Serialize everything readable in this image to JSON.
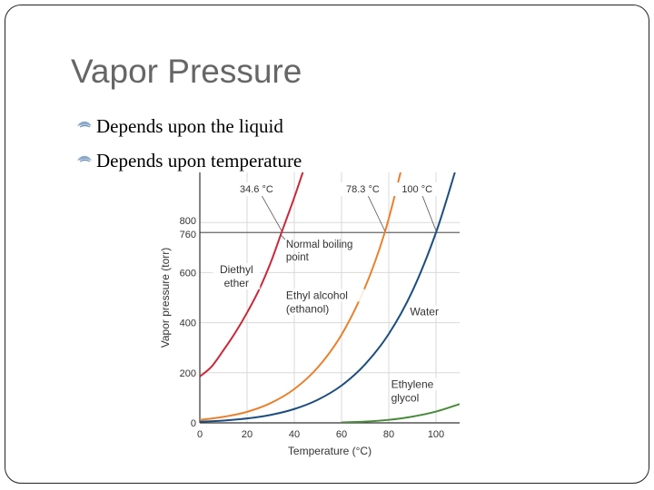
{
  "slide": {
    "title": "Vapor Pressure",
    "bullets": [
      {
        "icon": "bullet-ornament-icon",
        "text": "Depends upon the liquid"
      },
      {
        "icon": "bullet-ornament-icon",
        "text": "Depends upon temperature"
      }
    ]
  },
  "chart_data": {
    "type": "line",
    "title": "",
    "xlabel": "Temperature (°C)",
    "ylabel": "Vapor pressure (torr)",
    "xlim": [
      0,
      110
    ],
    "ylim": [
      0,
      1000
    ],
    "x_ticks": [
      0,
      20,
      40,
      60,
      80,
      100
    ],
    "y_ticks": [
      0,
      200,
      400,
      600,
      760,
      800
    ],
    "grid": true,
    "reference_line": {
      "y": 760,
      "label": "Normal boiling point"
    },
    "series": [
      {
        "name": "Diethyl ether",
        "label_lines": [
          "Diethyl",
          "ether"
        ],
        "color": "#c8283a",
        "boiling_point_label": "34.6 °C",
        "boiling_point": 34.6,
        "x": [
          0,
          5,
          10,
          15,
          20,
          25,
          30,
          34.6,
          40,
          45
        ],
        "y": [
          185,
          225,
          290,
          360,
          440,
          530,
          640,
          760,
          900,
          1040
        ]
      },
      {
        "name": "Ethyl alcohol (ethanol)",
        "label_lines": [
          "Ethyl alcohol",
          "(ethanol)"
        ],
        "color": "#e8802e",
        "boiling_point_label": "78.3 °C",
        "boiling_point": 78.3,
        "x": [
          0,
          10,
          20,
          30,
          40,
          50,
          60,
          70,
          78.3,
          85
        ],
        "y": [
          12,
          24,
          44,
          79,
          135,
          222,
          352,
          542,
          760,
          1000
        ]
      },
      {
        "name": "Water",
        "label_lines": [
          "Water"
        ],
        "color": "#1d4e7e",
        "boiling_point_label": "100 °C",
        "boiling_point": 100,
        "x": [
          0,
          10,
          20,
          30,
          40,
          50,
          60,
          70,
          80,
          90,
          100,
          108
        ],
        "y": [
          4.6,
          9.2,
          17.5,
          31.8,
          55.3,
          92.5,
          149,
          234,
          355,
          526,
          760,
          1000
        ]
      },
      {
        "name": "Ethylene glycol",
        "label_lines": [
          "Ethylene",
          "glycol"
        ],
        "color": "#4a8a3a",
        "x": [
          60,
          70,
          80,
          90,
          100,
          110
        ],
        "y": [
          2,
          5,
          12,
          25,
          45,
          75
        ]
      }
    ],
    "label_annotations": {
      "Normal boiling point": [
        "Normal boiling",
        "point"
      ]
    }
  }
}
